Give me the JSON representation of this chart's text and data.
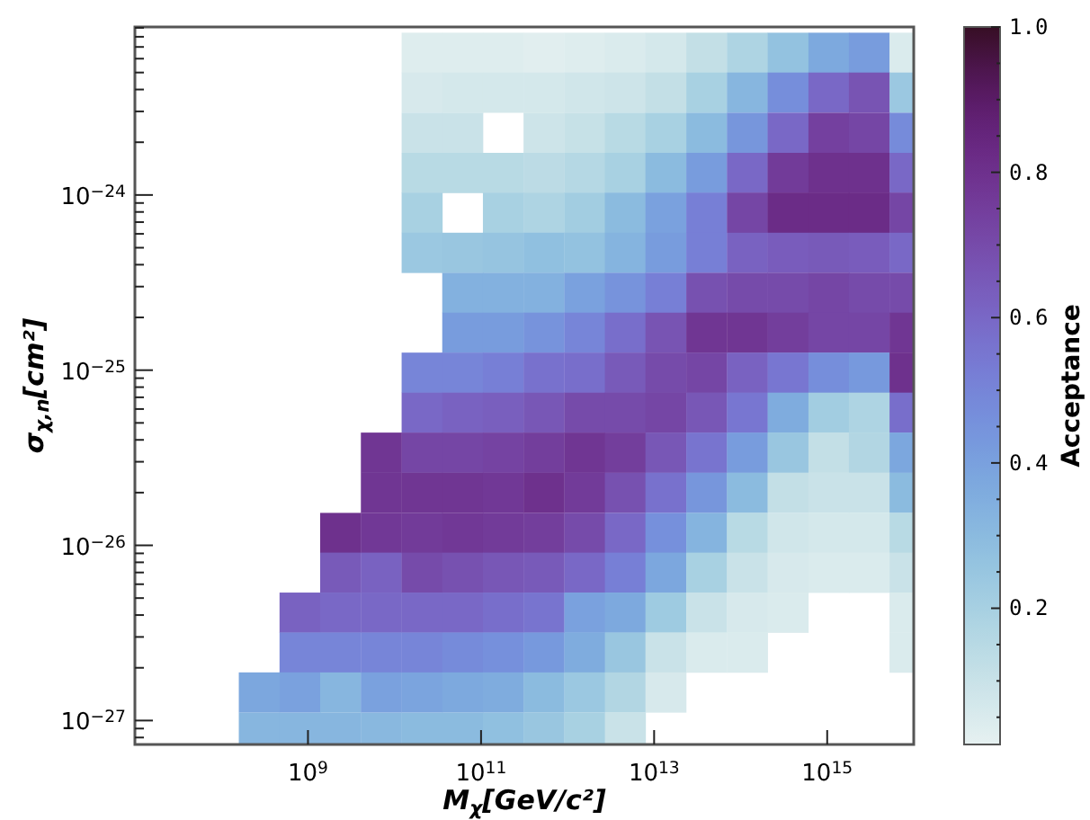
{
  "chart_data": {
    "type": "scatter",
    "marker": "square",
    "log": "xy",
    "xlabel": "M$_{χ}$[GeV/c²]",
    "ylabel": "σ$_{χ,n}$[cm²]",
    "clabel": "Acceptance",
    "xlim": [
      10000000.0,
      1e+16
    ],
    "ylim": [
      7.3e-28,
      9.1e-24
    ],
    "clim": [
      0.015,
      1.0
    ],
    "xticks": [
      {
        "value": 1000000000.0,
        "label": "10$^{9}$"
      },
      {
        "value": 100000000000.0,
        "label": "10$^{11}$"
      },
      {
        "value": 10000000000000.0,
        "label": "10$^{13}$"
      },
      {
        "value": 1000000000000000.0,
        "label": "10$^{15}$"
      }
    ],
    "yticks": [
      {
        "value": 8e-28,
        "label": null
      },
      {
        "value": 9e-28,
        "label": null
      },
      {
        "value": 1e-27,
        "label": "10$^{−27}$"
      },
      {
        "value": 2e-27,
        "label": null
      },
      {
        "value": 3e-27,
        "label": null
      },
      {
        "value": 4e-27,
        "label": null
      },
      {
        "value": 5e-27,
        "label": null
      },
      {
        "value": 6e-27,
        "label": null
      },
      {
        "value": 7e-27,
        "label": null
      },
      {
        "value": 8e-27,
        "label": null
      },
      {
        "value": 9e-27,
        "label": null
      },
      {
        "value": 1e-26,
        "label": "10$^{−26}$"
      },
      {
        "value": 2e-26,
        "label": null
      },
      {
        "value": 3e-26,
        "label": null
      },
      {
        "value": 4e-26,
        "label": null
      },
      {
        "value": 5e-26,
        "label": null
      },
      {
        "value": 6e-26,
        "label": null
      },
      {
        "value": 7e-26,
        "label": null
      },
      {
        "value": 8e-26,
        "label": null
      },
      {
        "value": 9e-26,
        "label": null
      },
      {
        "value": 1e-25,
        "label": "10$^{−25}$"
      },
      {
        "value": 2e-25,
        "label": null
      },
      {
        "value": 3e-25,
        "label": null
      },
      {
        "value": 4e-25,
        "label": null
      },
      {
        "value": 5e-25,
        "label": null
      },
      {
        "value": 6e-25,
        "label": null
      },
      {
        "value": 7e-25,
        "label": null
      },
      {
        "value": 8e-25,
        "label": null
      },
      {
        "value": 9e-25,
        "label": null
      },
      {
        "value": 1e-24,
        "label": "10$^{−24}$"
      },
      {
        "value": 2e-24,
        "label": null
      },
      {
        "value": 3e-24,
        "label": null
      },
      {
        "value": 4e-24,
        "label": null
      },
      {
        "value": 5e-24,
        "label": null
      },
      {
        "value": 6e-24,
        "label": null
      },
      {
        "value": 7e-24,
        "label": null
      },
      {
        "value": 8e-24,
        "label": null
      },
      {
        "value": 9e-24,
        "label": null
      }
    ],
    "cticks": [
      {
        "value": 0.05,
        "label": null
      },
      {
        "value": 0.1,
        "label": null
      },
      {
        "value": 0.15,
        "label": null
      },
      {
        "value": 0.2,
        "label": "0.2"
      },
      {
        "value": 0.25,
        "label": null
      },
      {
        "value": 0.3,
        "label": null
      },
      {
        "value": 0.35,
        "label": null
      },
      {
        "value": 0.4,
        "label": "0.4"
      },
      {
        "value": 0.45,
        "label": null
      },
      {
        "value": 0.5,
        "label": null
      },
      {
        "value": 0.55,
        "label": null
      },
      {
        "value": 0.6,
        "label": "0.6"
      },
      {
        "value": 0.65,
        "label": null
      },
      {
        "value": 0.7,
        "label": null
      },
      {
        "value": 0.75,
        "label": null
      },
      {
        "value": 0.8,
        "label": "0.8"
      },
      {
        "value": 0.85,
        "label": null
      },
      {
        "value": 0.9,
        "label": null
      },
      {
        "value": 0.95,
        "label": null
      },
      {
        "value": 1.0,
        "label": "1.0"
      }
    ],
    "x": [
      20700000000.0,
      61000000000.0,
      180000000000.0,
      531000000000.0,
      1570000000000.0,
      4620000000000.0,
      13600000000000.0,
      40300000000000.0,
      119000000000000.0,
      351000000000000.0,
      1040000000000000.0,
      3050000000000000.0,
      9000000000000000.0,
      20700000000.0,
      61000000000.0,
      180000000000.0,
      531000000000.0,
      1570000000000.0,
      4620000000000.0,
      13600000000000.0,
      40300000000000.0,
      119000000000000.0,
      351000000000000.0,
      1040000000000000.0,
      3050000000000000.0,
      9000000000000000.0,
      20700000000.0,
      61000000000.0,
      531000000000.0,
      1570000000000.0,
      4620000000000.0,
      13600000000000.0,
      40300000000000.0,
      119000000000000.0,
      351000000000000.0,
      1040000000000000.0,
      3050000000000000.0,
      9000000000000000.0,
      20700000000.0,
      61000000000.0,
      180000000000.0,
      531000000000.0,
      1570000000000.0,
      4620000000000.0,
      13600000000000.0,
      40300000000000.0,
      119000000000000.0,
      351000000000000.0,
      1040000000000000.0,
      3050000000000000.0,
      9000000000000000.0,
      20700000000.0,
      180000000000.0,
      531000000000.0,
      1570000000000.0,
      4620000000000.0,
      13600000000000.0,
      40300000000000.0,
      119000000000000.0,
      351000000000000.0,
      1040000000000000.0,
      3050000000000000.0,
      9000000000000000.0,
      20700000000.0,
      61000000000.0,
      180000000000.0,
      531000000000.0,
      1570000000000.0,
      4620000000000.0,
      13600000000000.0,
      40300000000000.0,
      119000000000000.0,
      351000000000000.0,
      1040000000000000.0,
      3050000000000000.0,
      9000000000000000.0,
      61000000000.0,
      180000000000.0,
      531000000000.0,
      1570000000000.0,
      4620000000000.0,
      13600000000000.0,
      40300000000000.0,
      119000000000000.0,
      351000000000000.0,
      1040000000000000.0,
      3050000000000000.0,
      9000000000000000.0,
      61000000000.0,
      180000000000.0,
      531000000000.0,
      1570000000000.0,
      4620000000000.0,
      13600000000000.0,
      40300000000000.0,
      119000000000000.0,
      351000000000000.0,
      1040000000000000.0,
      3050000000000000.0,
      9000000000000000.0,
      20700000000.0,
      61000000000.0,
      180000000000.0,
      531000000000.0,
      1570000000000.0,
      4620000000000.0,
      13600000000000.0,
      40300000000000.0,
      119000000000000.0,
      351000000000000.0,
      1040000000000000.0,
      3050000000000000.0,
      9000000000000000.0,
      20700000000.0,
      61000000000.0,
      180000000000.0,
      531000000000.0,
      1570000000000.0,
      4620000000000.0,
      13600000000000.0,
      40300000000000.0,
      119000000000000.0,
      351000000000000.0,
      1040000000000000.0,
      3050000000000000.0,
      9000000000000000.0,
      7000000000.0,
      20700000000.0,
      61000000000.0,
      180000000000.0,
      531000000000.0,
      1570000000000.0,
      4620000000000.0,
      13600000000000.0,
      40300000000000.0,
      119000000000000.0,
      351000000000000.0,
      1040000000000000.0,
      3050000000000000.0,
      9000000000000000.0,
      7000000000.0,
      20700000000.0,
      61000000000.0,
      180000000000.0,
      531000000000.0,
      1570000000000.0,
      4620000000000.0,
      13600000000000.0,
      40300000000000.0,
      119000000000000.0,
      351000000000000.0,
      1040000000000000.0,
      3050000000000000.0,
      9000000000000000.0,
      2370000000.0,
      7000000000.0,
      20700000000.0,
      61000000000.0,
      180000000000.0,
      531000000000.0,
      1570000000000.0,
      4620000000000.0,
      13600000000000.0,
      40300000000000.0,
      119000000000000.0,
      351000000000000.0,
      1040000000000000.0,
      3050000000000000.0,
      9000000000000000.0,
      2370000000.0,
      7000000000.0,
      20700000000.0,
      61000000000.0,
      180000000000.0,
      531000000000.0,
      1570000000000.0,
      4620000000000.0,
      13600000000000.0,
      40300000000000.0,
      119000000000000.0,
      351000000000000.0,
      1040000000000000.0,
      3050000000000000.0,
      9000000000000000.0,
      804000000.0,
      2370000000.0,
      7000000000.0,
      20700000000.0,
      61000000000.0,
      180000000000.0,
      531000000000.0,
      1570000000000.0,
      4620000000000.0,
      13600000000000.0,
      40300000000000.0,
      119000000000000.0,
      351000000000000.0,
      9000000000000000.0,
      804000000.0,
      2370000000.0,
      7000000000.0,
      20700000000.0,
      61000000000.0,
      180000000000.0,
      531000000000.0,
      1570000000000.0,
      4620000000000.0,
      13600000000000.0,
      40300000000000.0,
      119000000000000.0,
      9000000000000000.0,
      272000000.0,
      804000000.0,
      2370000000.0,
      7000000000.0,
      20700000000.0,
      61000000000.0,
      180000000000.0,
      531000000000.0,
      1570000000000.0,
      4620000000000.0,
      13600000000000.0,
      272000000.0,
      804000000.0,
      2370000000.0,
      7000000000.0,
      20700000000.0,
      61000000000.0,
      180000000000.0,
      531000000000.0,
      1570000000000.0,
      4620000000000.0
    ],
    "values": [
      6.5e-24,
      6.5e-24,
      6.5e-24,
      6.5e-24,
      6.5e-24,
      6.5e-24,
      6.5e-24,
      6.5e-24,
      6.5e-24,
      6.5e-24,
      6.5e-24,
      6.5e-24,
      6.5e-24,
      3.85e-24,
      3.85e-24,
      3.85e-24,
      3.85e-24,
      3.85e-24,
      3.85e-24,
      3.85e-24,
      3.85e-24,
      3.85e-24,
      3.85e-24,
      3.85e-24,
      3.85e-24,
      3.85e-24,
      2.27e-24,
      2.27e-24,
      2.27e-24,
      2.27e-24,
      2.27e-24,
      2.27e-24,
      2.27e-24,
      2.27e-24,
      2.27e-24,
      2.27e-24,
      2.27e-24,
      2.27e-24,
      1.34e-24,
      1.34e-24,
      1.34e-24,
      1.34e-24,
      1.34e-24,
      1.34e-24,
      1.34e-24,
      1.34e-24,
      1.34e-24,
      1.34e-24,
      1.34e-24,
      1.34e-24,
      1.34e-24,
      7.94e-25,
      7.94e-25,
      7.94e-25,
      7.94e-25,
      7.94e-25,
      7.94e-25,
      7.94e-25,
      7.94e-25,
      7.94e-25,
      7.94e-25,
      7.94e-25,
      7.94e-25,
      4.69e-25,
      4.69e-25,
      4.69e-25,
      4.69e-25,
      4.69e-25,
      4.69e-25,
      4.69e-25,
      4.69e-25,
      4.69e-25,
      4.69e-25,
      4.69e-25,
      4.69e-25,
      4.69e-25,
      2.77e-25,
      2.77e-25,
      2.77e-25,
      2.77e-25,
      2.77e-25,
      2.77e-25,
      2.77e-25,
      2.77e-25,
      2.77e-25,
      2.77e-25,
      2.77e-25,
      2.77e-25,
      1.64e-25,
      1.64e-25,
      1.64e-25,
      1.64e-25,
      1.64e-25,
      1.64e-25,
      1.64e-25,
      1.64e-25,
      1.64e-25,
      1.64e-25,
      1.64e-25,
      1.64e-25,
      9.7e-26,
      9.7e-26,
      9.7e-26,
      9.7e-26,
      9.7e-26,
      9.7e-26,
      9.7e-26,
      9.7e-26,
      9.7e-26,
      9.7e-26,
      9.7e-26,
      9.7e-26,
      9.7e-26,
      5.73e-26,
      5.73e-26,
      5.73e-26,
      5.73e-26,
      5.73e-26,
      5.73e-26,
      5.73e-26,
      5.73e-26,
      5.73e-26,
      5.73e-26,
      5.73e-26,
      5.73e-26,
      5.73e-26,
      3.39e-26,
      3.39e-26,
      3.39e-26,
      3.39e-26,
      3.39e-26,
      3.39e-26,
      3.39e-26,
      3.39e-26,
      3.39e-26,
      3.39e-26,
      3.39e-26,
      3.39e-26,
      3.39e-26,
      3.39e-26,
      2e-26,
      2e-26,
      2e-26,
      2e-26,
      2e-26,
      2e-26,
      2e-26,
      2e-26,
      2e-26,
      2e-26,
      2e-26,
      2e-26,
      2e-26,
      2e-26,
      1.18e-26,
      1.18e-26,
      1.18e-26,
      1.18e-26,
      1.18e-26,
      1.18e-26,
      1.18e-26,
      1.18e-26,
      1.18e-26,
      1.18e-26,
      1.18e-26,
      1.18e-26,
      1.18e-26,
      1.18e-26,
      1.18e-26,
      7e-27,
      7e-27,
      7e-27,
      7e-27,
      7e-27,
      7e-27,
      7e-27,
      7e-27,
      7e-27,
      7e-27,
      7e-27,
      7e-27,
      7e-27,
      7e-27,
      7e-27,
      4.14e-27,
      4.14e-27,
      4.14e-27,
      4.14e-27,
      4.14e-27,
      4.14e-27,
      4.14e-27,
      4.14e-27,
      4.14e-27,
      4.14e-27,
      4.14e-27,
      4.14e-27,
      4.14e-27,
      4.14e-27,
      2.45e-27,
      2.45e-27,
      2.45e-27,
      2.45e-27,
      2.45e-27,
      2.45e-27,
      2.45e-27,
      2.45e-27,
      2.45e-27,
      2.45e-27,
      2.45e-27,
      2.45e-27,
      2.45e-27,
      1.45e-27,
      1.45e-27,
      1.45e-27,
      1.45e-27,
      1.45e-27,
      1.45e-27,
      1.45e-27,
      1.45e-27,
      1.45e-27,
      1.45e-27,
      1.45e-27,
      8.55e-28,
      8.55e-28,
      8.55e-28,
      8.55e-28,
      8.55e-28,
      8.55e-28,
      8.55e-28,
      8.55e-28,
      8.55e-28,
      8.55e-28
    ],
    "cvalues": [
      0.04,
      0.04,
      0.04,
      0.03,
      0.04,
      0.05,
      0.07,
      0.12,
      0.18,
      0.27,
      0.37,
      0.42,
      0.05,
      0.06,
      0.07,
      0.07,
      0.07,
      0.08,
      0.09,
      0.12,
      0.2,
      0.32,
      0.47,
      0.6,
      0.67,
      0.24,
      0.1,
      0.1,
      0.09,
      0.11,
      0.15,
      0.2,
      0.3,
      0.44,
      0.6,
      0.74,
      0.72,
      0.48,
      0.15,
      0.15,
      0.15,
      0.14,
      0.16,
      0.2,
      0.3,
      0.42,
      0.6,
      0.76,
      0.8,
      0.8,
      0.6,
      0.2,
      0.2,
      0.18,
      0.22,
      0.3,
      0.4,
      0.52,
      0.72,
      0.82,
      0.82,
      0.82,
      0.72,
      0.24,
      0.25,
      0.26,
      0.28,
      0.27,
      0.33,
      0.42,
      0.52,
      0.62,
      0.64,
      0.65,
      0.64,
      0.6,
      0.34,
      0.34,
      0.34,
      0.4,
      0.45,
      0.52,
      0.68,
      0.7,
      0.7,
      0.72,
      0.7,
      0.7,
      0.42,
      0.42,
      0.45,
      0.5,
      0.58,
      0.67,
      0.78,
      0.78,
      0.75,
      0.72,
      0.72,
      0.78,
      0.5,
      0.5,
      0.52,
      0.57,
      0.58,
      0.65,
      0.7,
      0.72,
      0.62,
      0.55,
      0.47,
      0.43,
      0.8,
      0.6,
      0.62,
      0.63,
      0.66,
      0.7,
      0.7,
      0.72,
      0.66,
      0.55,
      0.36,
      0.22,
      0.18,
      0.58,
      0.78,
      0.72,
      0.72,
      0.73,
      0.75,
      0.78,
      0.75,
      0.66,
      0.56,
      0.42,
      0.25,
      0.12,
      0.17,
      0.38,
      0.78,
      0.78,
      0.78,
      0.77,
      0.8,
      0.76,
      0.68,
      0.57,
      0.44,
      0.3,
      0.12,
      0.1,
      0.1,
      0.3,
      0.8,
      0.77,
      0.76,
      0.77,
      0.76,
      0.75,
      0.7,
      0.6,
      0.46,
      0.33,
      0.15,
      0.08,
      0.07,
      0.07,
      0.15,
      0.65,
      0.62,
      0.7,
      0.68,
      0.66,
      0.65,
      0.6,
      0.52,
      0.38,
      0.2,
      0.1,
      0.06,
      0.05,
      0.05,
      0.1,
      0.62,
      0.6,
      0.6,
      0.6,
      0.6,
      0.58,
      0.56,
      0.4,
      0.37,
      0.23,
      0.1,
      0.06,
      0.05,
      0.05,
      0.5,
      0.5,
      0.5,
      0.5,
      0.48,
      0.46,
      0.43,
      0.36,
      0.25,
      0.1,
      0.05,
      0.05,
      0.05,
      0.38,
      0.4,
      0.32,
      0.4,
      0.39,
      0.37,
      0.36,
      0.3,
      0.24,
      0.17,
      0.06,
      0.32,
      0.32,
      0.32,
      0.31,
      0.3,
      0.3,
      0.28,
      0.25,
      0.2,
      0.1
    ]
  }
}
